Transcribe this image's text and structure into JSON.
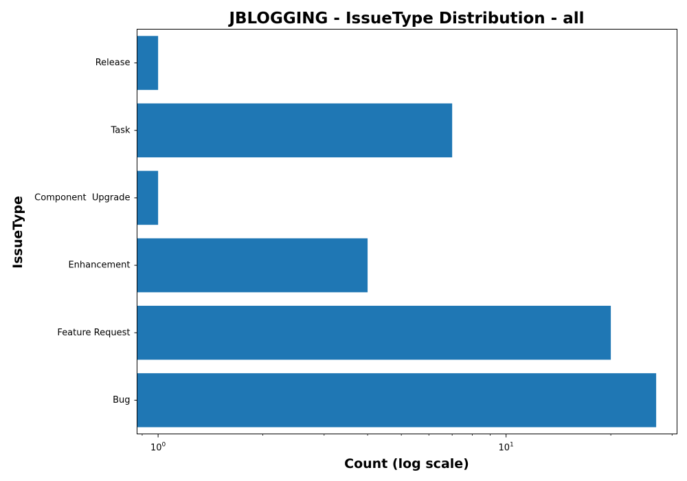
{
  "chart_data": {
    "type": "bar",
    "orientation": "horizontal",
    "title": "JBLOGGING - IssueType Distribution - all",
    "xlabel": "Count (log scale)",
    "ylabel": "IssueType",
    "x_scale": "log",
    "x_ticks": [
      {
        "value": 1,
        "base": "10",
        "exp": "0"
      },
      {
        "value": 10,
        "base": "10",
        "exp": "1"
      }
    ],
    "categories": [
      "Release",
      "Task",
      "Component  Upgrade",
      "Enhancement",
      "Feature Request",
      "Bug"
    ],
    "values": [
      1,
      7,
      1,
      4,
      20,
      27
    ],
    "xlim": [
      0.87,
      31
    ],
    "grid": false,
    "colors": {
      "bar": "#1f77b4"
    }
  }
}
